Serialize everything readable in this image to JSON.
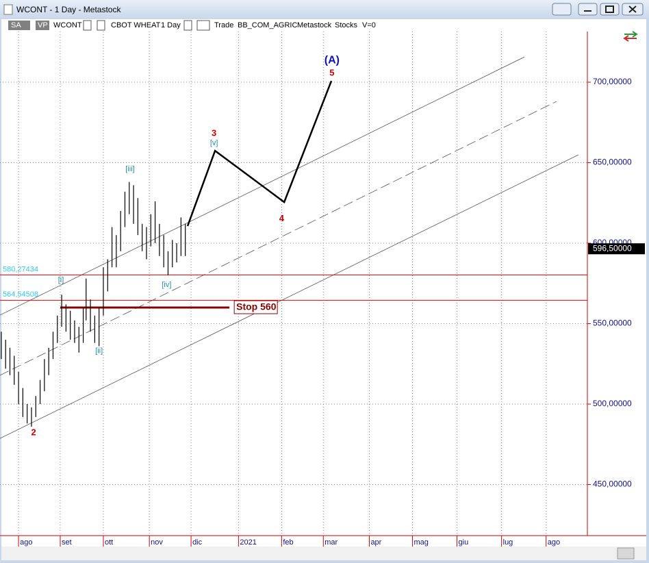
{
  "window": {
    "title": "WCONT - 1 Day - Metastock"
  },
  "toolbar": {
    "items": [
      "SA",
      "VP",
      "WCONT",
      "CBOT WHEAT",
      "1 Day",
      "Trade",
      "BB_COM_AGRIC",
      "Metastock",
      "Stocks",
      "V=0"
    ]
  },
  "chart_data": {
    "type": "hilo",
    "color": "#000000",
    "x": [
      -12,
      -9,
      -6,
      -3,
      0,
      3,
      6,
      9,
      12,
      15,
      18,
      21,
      24,
      27,
      30,
      33,
      36,
      39,
      42,
      45,
      47,
      50,
      53,
      56,
      59,
      62,
      65,
      68,
      71,
      74,
      77,
      80,
      83,
      86,
      89,
      92,
      95,
      98,
      101,
      104,
      107,
      110,
      113,
      116
    ],
    "high": [
      545,
      540,
      535,
      530,
      520,
      510,
      500,
      498,
      505,
      515,
      528,
      535,
      545,
      555,
      568,
      562,
      558,
      552,
      548,
      560,
      578,
      565,
      555,
      560,
      585,
      590,
      610,
      605,
      620,
      632,
      638,
      636,
      628,
      612,
      610,
      618,
      626,
      612,
      605,
      595,
      602,
      600,
      616,
      612
    ],
    "low": [
      528,
      522,
      518,
      512,
      500,
      492,
      488,
      486,
      492,
      500,
      508,
      518,
      528,
      538,
      548,
      545,
      540,
      538,
      532,
      538,
      552,
      545,
      538,
      536,
      555,
      570,
      585,
      585,
      595,
      610,
      618,
      612,
      605,
      595,
      590,
      598,
      600,
      592,
      585,
      580,
      585,
      588,
      592,
      592
    ],
    "xlim": [
      -12.9,
      395.7
    ],
    "xticks": [
      {
        "value": 0,
        "label": "ago"
      },
      {
        "value": 29,
        "label": "set"
      },
      {
        "value": 59,
        "label": "ott"
      },
      {
        "value": 91,
        "label": "nov"
      },
      {
        "value": 120,
        "label": "dic"
      },
      {
        "value": 153,
        "label": "2021"
      },
      {
        "value": 183,
        "label": "feb"
      },
      {
        "value": 212,
        "label": "mar"
      },
      {
        "value": 244,
        "label": "apr"
      },
      {
        "value": 274,
        "label": "mag"
      },
      {
        "value": 305,
        "label": "giu"
      },
      {
        "value": 336,
        "label": "lug"
      },
      {
        "value": 367,
        "label": "ago"
      }
    ],
    "ylim": [
      418.3,
      731.5
    ],
    "yticks": [
      {
        "value": 450,
        "label": "450,00000"
      },
      {
        "value": 500,
        "label": "500,00000"
      },
      {
        "value": 550,
        "label": "550,00000"
      },
      {
        "value": 600,
        "label": "600,00000"
      },
      {
        "value": 650,
        "label": "650,00000"
      },
      {
        "value": 700,
        "label": "700,00000"
      }
    ],
    "grid": true,
    "last_price": {
      "value": 596.5,
      "label": "596,50000"
    },
    "levels": [
      {
        "value": 580.27434,
        "label": "580,27434"
      },
      {
        "value": 564.54508,
        "label": "564,54508"
      }
    ],
    "stop": {
      "value": 560,
      "label": "Stop 560",
      "x": [
        29,
        146.7
      ]
    },
    "projection": {
      "x": [
        117.6,
        136.7,
        184.8,
        217.6
      ],
      "y": [
        610.6,
        657.4,
        625.5,
        700.8
      ]
    },
    "channels": [
      {
        "x": [
          -12.9,
          351.9
        ],
        "y": [
          555.3,
          715.7
        ],
        "style": "solid"
      },
      {
        "x": [
          -12.9,
          374.3
        ],
        "y": [
          517.9,
          688.1
        ],
        "style": "dashed"
      },
      {
        "x": [
          -12.9,
          389.5
        ],
        "y": [
          478.7,
          654.9
        ],
        "style": "solid"
      }
    ],
    "annotations": [
      {
        "text": "2",
        "x": 10.5,
        "y": 482,
        "color": "#cc0000"
      },
      {
        "text": "[i]",
        "x": 29.5,
        "y": 577,
        "color": "#1a8fa0"
      },
      {
        "text": "[ii]",
        "x": 56,
        "y": 533,
        "color": "#1a8fa0"
      },
      {
        "text": "[iii]",
        "x": 77.6,
        "y": 646,
        "color": "#1a8fa0"
      },
      {
        "text": "[iv]",
        "x": 103,
        "y": 574,
        "color": "#1a8fa0"
      },
      {
        "text": "3",
        "x": 136,
        "y": 668,
        "color": "#cc0000"
      },
      {
        "text": "[v]",
        "x": 136,
        "y": 662,
        "color": "#1a8fa0"
      },
      {
        "text": "4",
        "x": 183,
        "y": 615,
        "color": "#cc0000"
      },
      {
        "text": "5",
        "x": 218,
        "y": 705.5,
        "color": "#cc0000"
      },
      {
        "text": "(A)",
        "x": 218,
        "y": 713.6,
        "color": "#1010c0"
      }
    ]
  }
}
